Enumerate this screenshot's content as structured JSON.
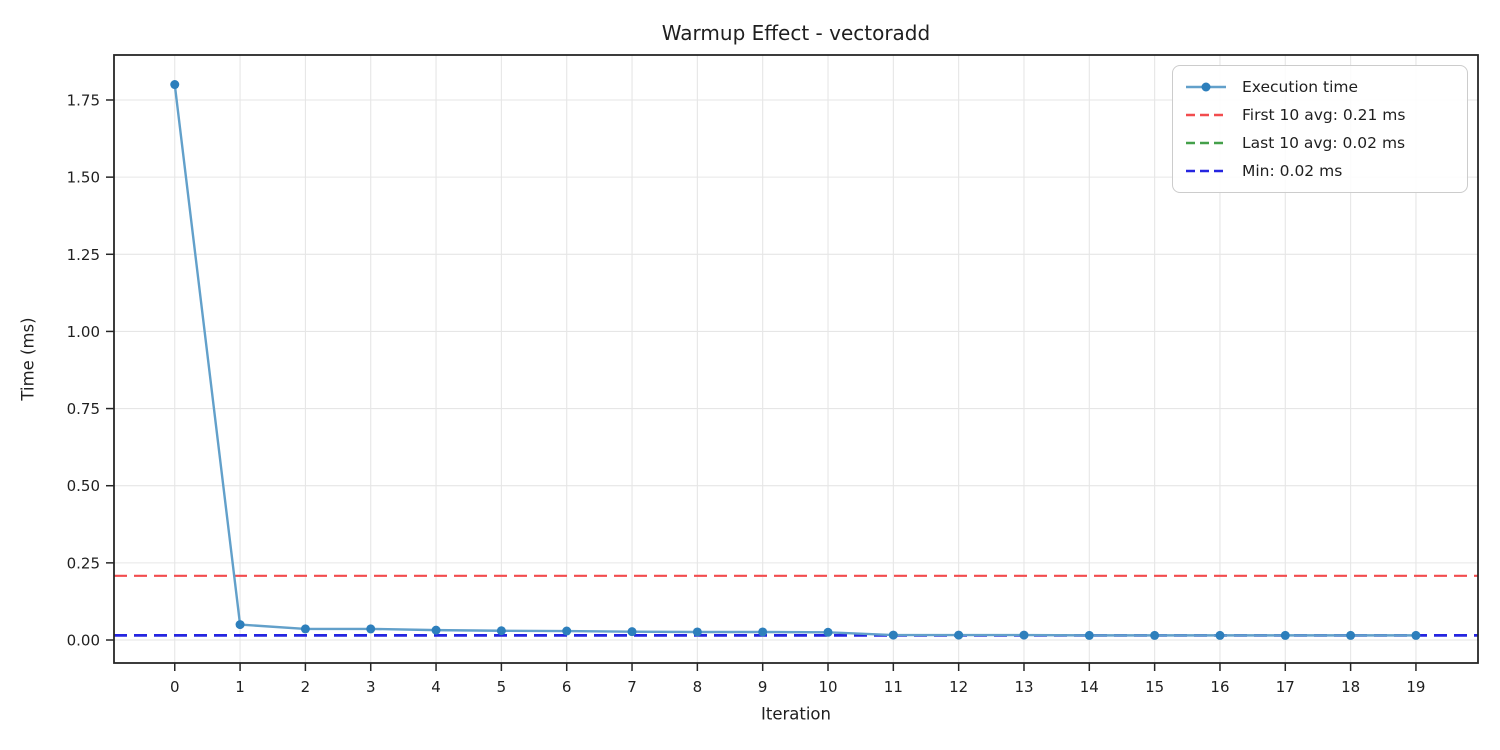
{
  "chart_data": {
    "type": "line",
    "title": "Warmup Effect - vectoradd",
    "xlabel": "Iteration",
    "ylabel": "Time (ms)",
    "x": [
      0,
      1,
      2,
      3,
      4,
      5,
      6,
      7,
      8,
      9,
      10,
      11,
      12,
      13,
      14,
      15,
      16,
      17,
      18,
      19
    ],
    "series": [
      {
        "name": "Execution time",
        "values": [
          1.8,
          0.05,
          0.036,
          0.036,
          0.032,
          0.03,
          0.029,
          0.027,
          0.026,
          0.026,
          0.025,
          0.016,
          0.016,
          0.016,
          0.015,
          0.015,
          0.015,
          0.015,
          0.015,
          0.015
        ],
        "line_color": "#62a0ca",
        "marker_color": "#2d7fbc",
        "marker": "circle"
      }
    ],
    "ref_lines": [
      {
        "label": "First 10 avg: 0.21 ms",
        "value": 0.208,
        "color": "#f24c4e",
        "style": "dashed"
      },
      {
        "label": "Last 10 avg: 0.02 ms",
        "value": 0.016,
        "color": "#44a04a",
        "style": "dashed"
      },
      {
        "label": "Min: 0.02 ms",
        "value": 0.015,
        "color": "#2525e0",
        "style": "dashed"
      }
    ],
    "legend_position": "upper right",
    "xticks": {
      "values": [
        0,
        1,
        2,
        3,
        4,
        5,
        6,
        7,
        8,
        9,
        10,
        11,
        12,
        13,
        14,
        15,
        16,
        17,
        18,
        19
      ],
      "labels": [
        "0",
        "1",
        "2",
        "3",
        "4",
        "5",
        "6",
        "7",
        "8",
        "9",
        "10",
        "11",
        "12",
        "13",
        "14",
        "15",
        "16",
        "17",
        "18",
        "19"
      ]
    },
    "yticks": {
      "values": [
        0,
        0.25,
        0.5,
        0.75,
        1.0,
        1.25,
        1.5,
        1.75
      ],
      "labels": [
        "0.00",
        "0.25",
        "0.50",
        "0.75",
        "1.00",
        "1.25",
        "1.50",
        "1.75"
      ]
    },
    "xlim": [
      -0.93,
      19.95
    ],
    "ylim": [
      -0.0745,
      1.8958
    ],
    "grid": true,
    "colors": {
      "grid": "#e6e6e6",
      "spine": "#262626",
      "tick_text": "#1f1f1f",
      "background": "#ffffff",
      "legend_border": "#cccccc"
    }
  }
}
